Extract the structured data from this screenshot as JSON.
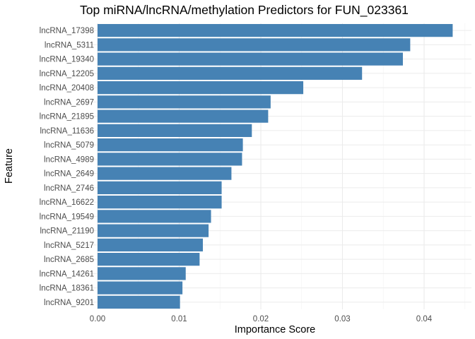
{
  "chart_data": {
    "type": "bar",
    "orientation": "horizontal",
    "title": "Top miRNA/lncRNA/methylation Predictors for FUN_023361",
    "xlabel": "Importance Score",
    "ylabel": "Feature",
    "xlim": [
      -0.00218,
      0.0457
    ],
    "xticks": [
      "0.00",
      "0.01",
      "0.02",
      "0.03",
      "0.04"
    ],
    "xtick_values": [
      0.0,
      0.01,
      0.02,
      0.03,
      0.04
    ],
    "grid": true,
    "bar_color": "#4682b4",
    "categories": [
      "lncRNA_17398",
      "lncRNA_5311",
      "lncRNA_19340",
      "lncRNA_12205",
      "lncRNA_20408",
      "lncRNA_2697",
      "lncRNA_21895",
      "lncRNA_11636",
      "lncRNA_5079",
      "lncRNA_4989",
      "lncRNA_2649",
      "lncRNA_2746",
      "lncRNA_16622",
      "lncRNA_19549",
      "lncRNA_21190",
      "lncRNA_5217",
      "lncRNA_2685",
      "lncRNA_14261",
      "lncRNA_18361",
      "lncRNA_9201"
    ],
    "values": [
      0.0435,
      0.0383,
      0.0374,
      0.0324,
      0.0252,
      0.0212,
      0.0209,
      0.0189,
      0.0178,
      0.0177,
      0.0164,
      0.0152,
      0.0152,
      0.0139,
      0.0136,
      0.0129,
      0.0125,
      0.0108,
      0.0104,
      0.0101
    ]
  }
}
